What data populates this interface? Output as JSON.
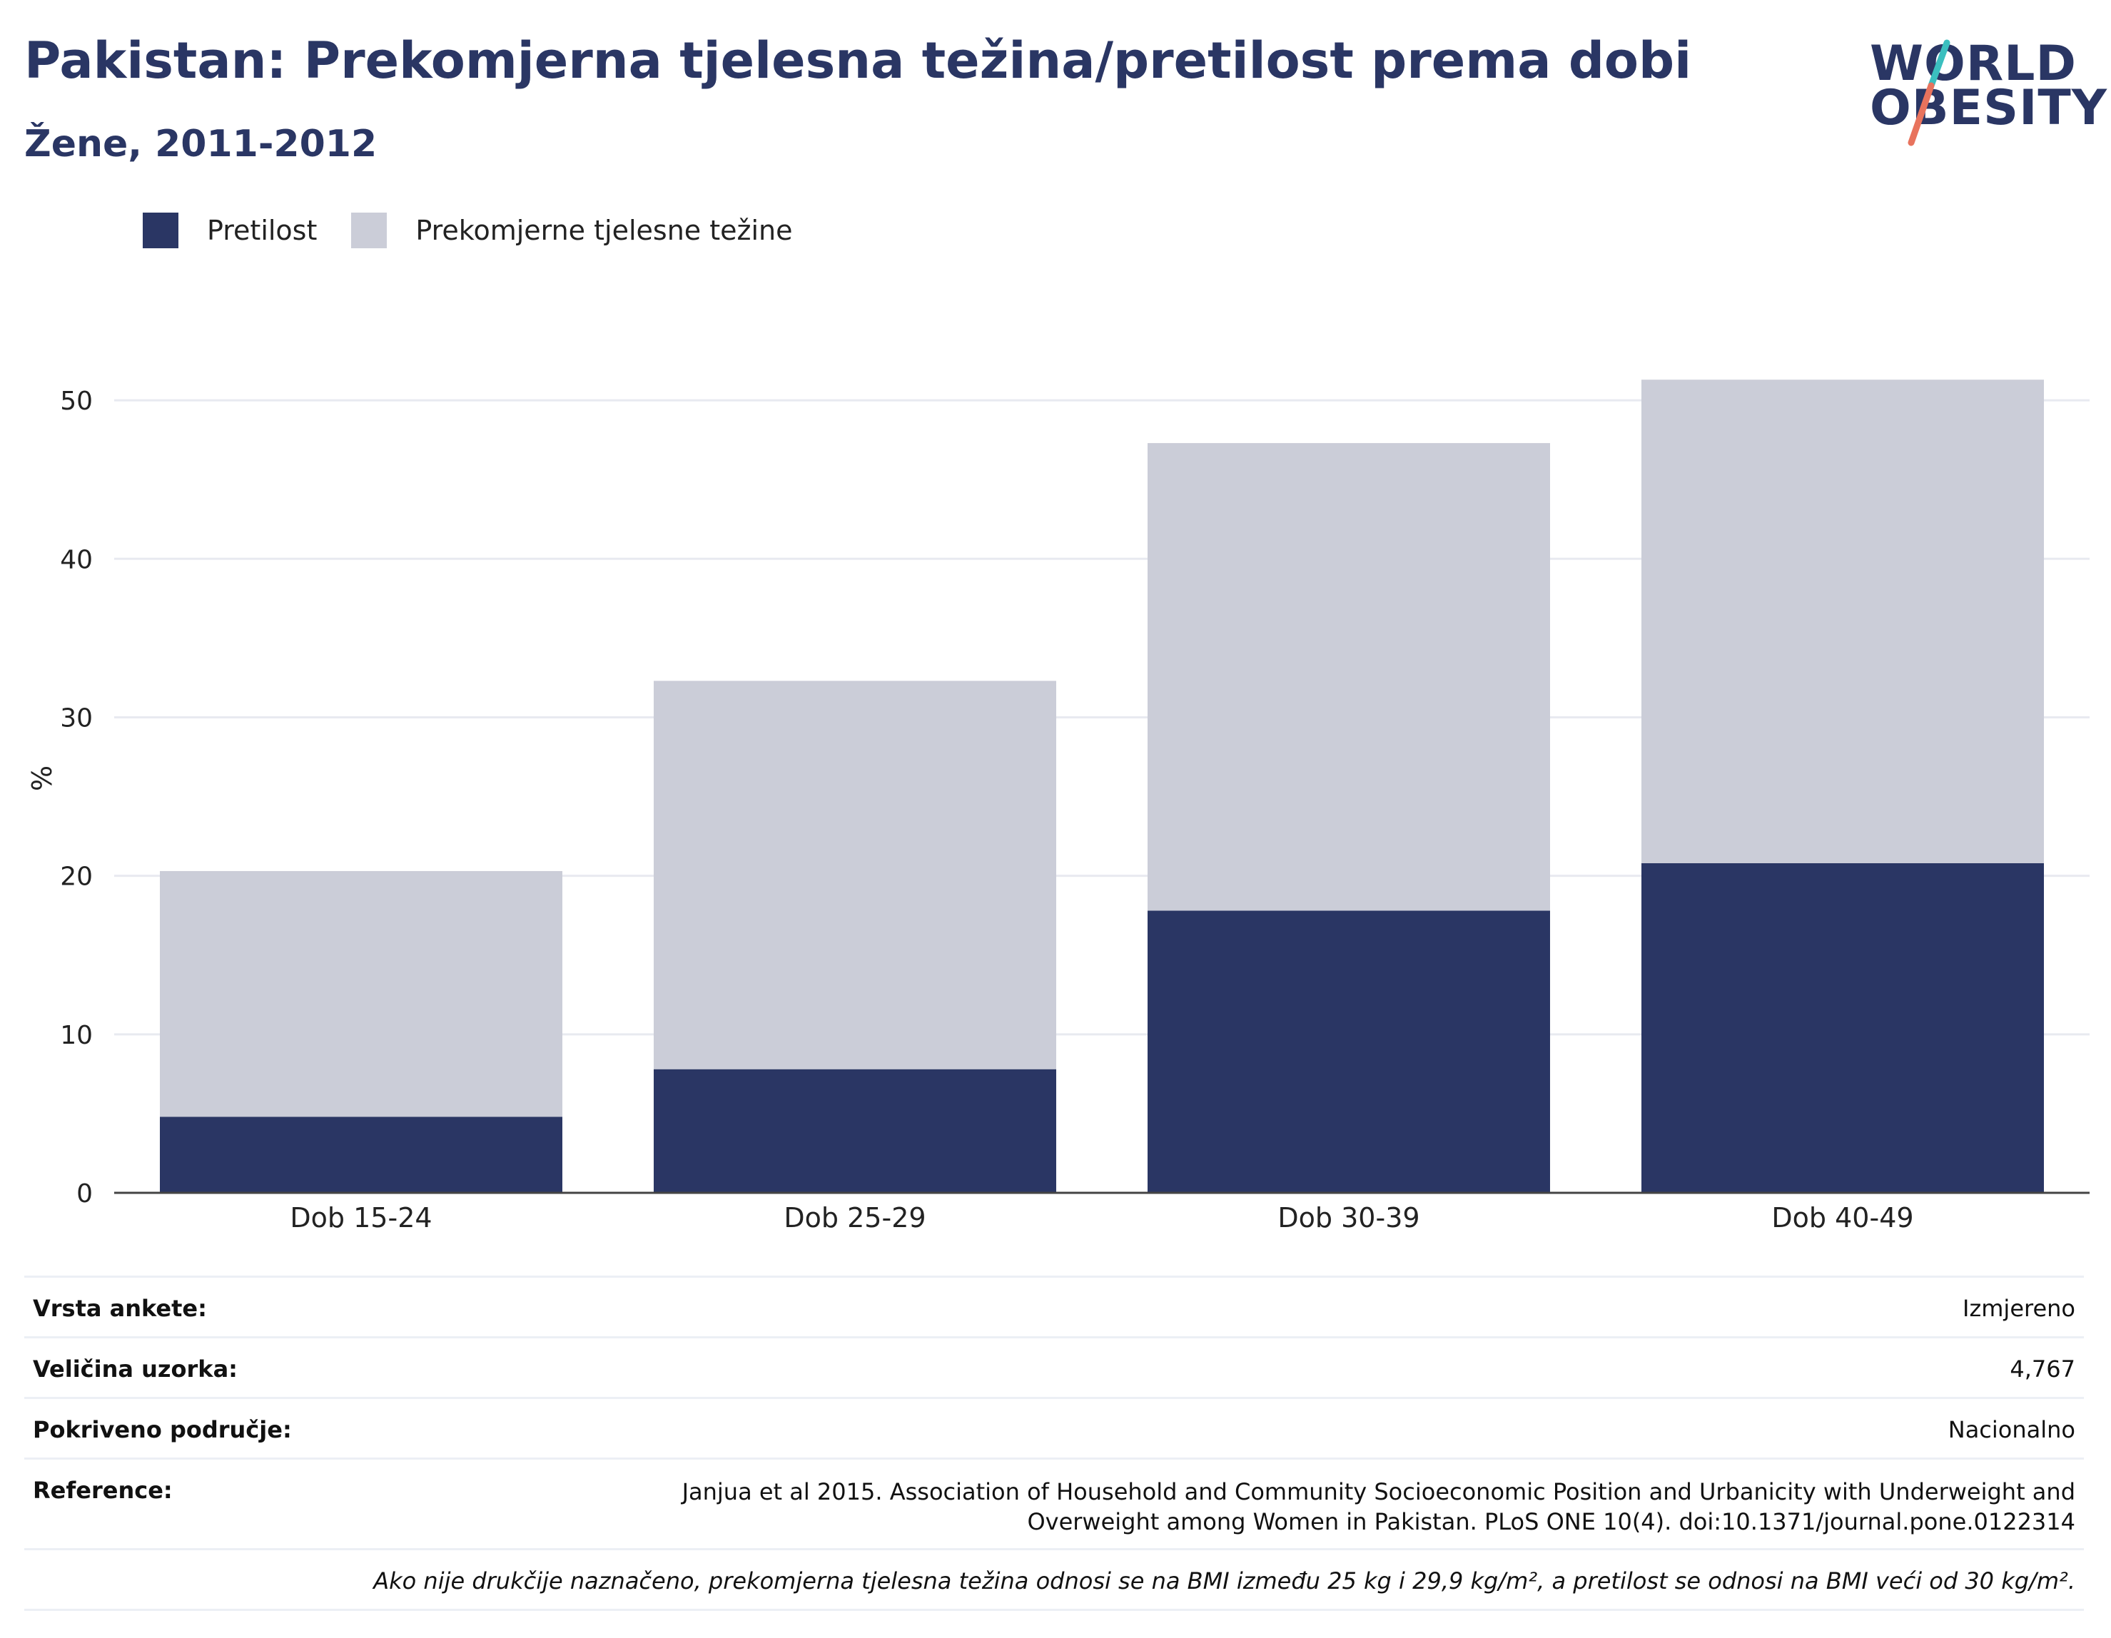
{
  "header": {
    "title": "Pakistan: Prekomjerna tjelesna težina/pretilost prema dobi",
    "subtitle": "Žene, 2011-2012"
  },
  "logo": {
    "line1": "WORLD",
    "line2": "OBESITY",
    "accent_colors": [
      "#3bbfbf",
      "#e8735d"
    ]
  },
  "legend": {
    "items": [
      {
        "label": "Pretilost",
        "color": "#2a3664"
      },
      {
        "label": "Prekomjerne tjelesne težine",
        "color": "#cbcdd8"
      }
    ]
  },
  "chart_data": {
    "type": "bar",
    "stacked": true,
    "categories": [
      "Dob 15-24",
      "Dob 25-29",
      "Dob 30-39",
      "Dob 40-49"
    ],
    "series": [
      {
        "name": "Pretilost",
        "color": "#2a3664",
        "values": [
          4.8,
          7.8,
          17.8,
          20.8
        ]
      },
      {
        "name": "Prekomjerne tjelesne težine",
        "color": "#cbcdd8",
        "values": [
          15.5,
          24.5,
          29.5,
          30.5
        ]
      }
    ],
    "ylabel": "%",
    "xlabel": "",
    "ylim": [
      0,
      55
    ],
    "yticks": [
      0,
      10,
      20,
      30,
      40,
      50
    ],
    "grid": true,
    "legend_position": "top-left"
  },
  "info": {
    "rows": [
      {
        "label": "Vrsta ankete:",
        "value": "Izmjereno"
      },
      {
        "label": "Veličina uzorka:",
        "value": "4,767"
      },
      {
        "label": "Pokriveno područje:",
        "value": "Nacionalno"
      },
      {
        "label": "Reference:",
        "value": "Janjua et al 2015. Association of Household and Community Socioeconomic Position and Urbanicity with Underweight and Overweight among Women in Pakistan. PLoS ONE 10(4). doi:10.1371/journal.pone.0122314"
      }
    ],
    "footnote": "Ako nije drukčije naznačeno, prekomjerna tjelesna težina odnosi se na BMI između 25 kg i 29,9 kg/m², a pretilost se odnosi na BMI veći od 30 kg/m²."
  }
}
